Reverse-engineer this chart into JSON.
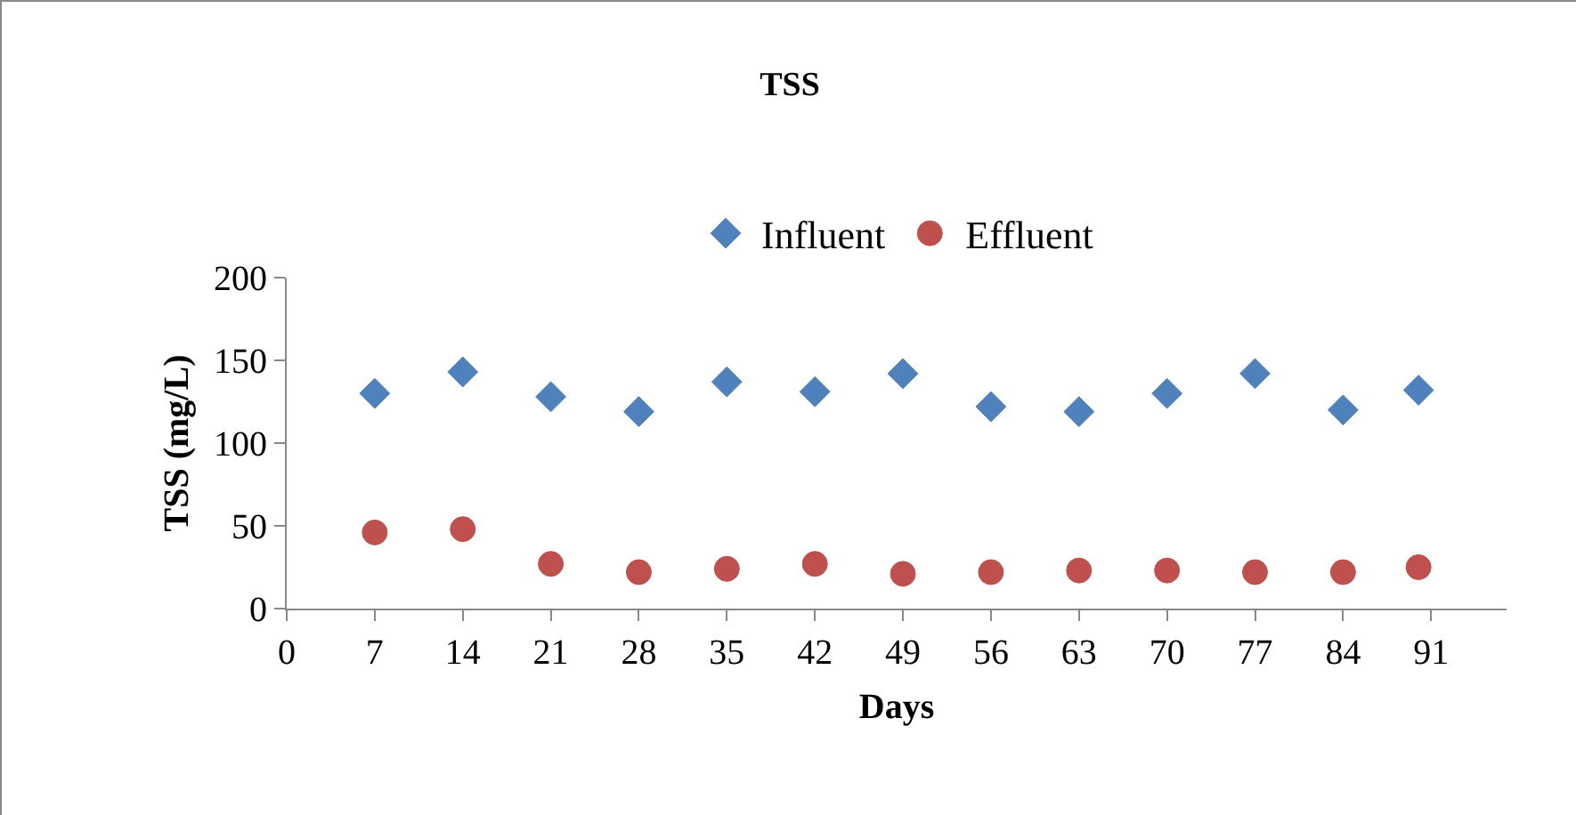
{
  "chart_data": {
    "type": "scatter",
    "title": "TSS",
    "xlabel": "Days",
    "ylabel": "TSS (mg/L)",
    "xlim": [
      0,
      97
    ],
    "xticks": [
      0,
      7,
      14,
      21,
      28,
      35,
      42,
      49,
      56,
      63,
      70,
      77,
      84,
      91
    ],
    "ylim": [
      0,
      200
    ],
    "yticks": [
      0,
      50,
      100,
      150,
      200
    ],
    "grid": false,
    "legend": "top",
    "series": [
      {
        "name": "Influent",
        "color": "#4f81bd",
        "marker": "diamond",
        "x": [
          7,
          14,
          21,
          28,
          35,
          42,
          49,
          56,
          63,
          70,
          77,
          84,
          90
        ],
        "values": [
          130,
          143,
          128,
          119,
          137,
          131,
          142,
          122,
          119,
          130,
          142,
          120,
          132
        ]
      },
      {
        "name": "Effluent",
        "color": "#c0504d",
        "marker": "circle",
        "x": [
          7,
          14,
          21,
          28,
          35,
          42,
          49,
          56,
          63,
          70,
          77,
          84,
          90
        ],
        "values": [
          46,
          48,
          27,
          22,
          24,
          27,
          21,
          22,
          23,
          23,
          22,
          22,
          25
        ]
      }
    ]
  }
}
